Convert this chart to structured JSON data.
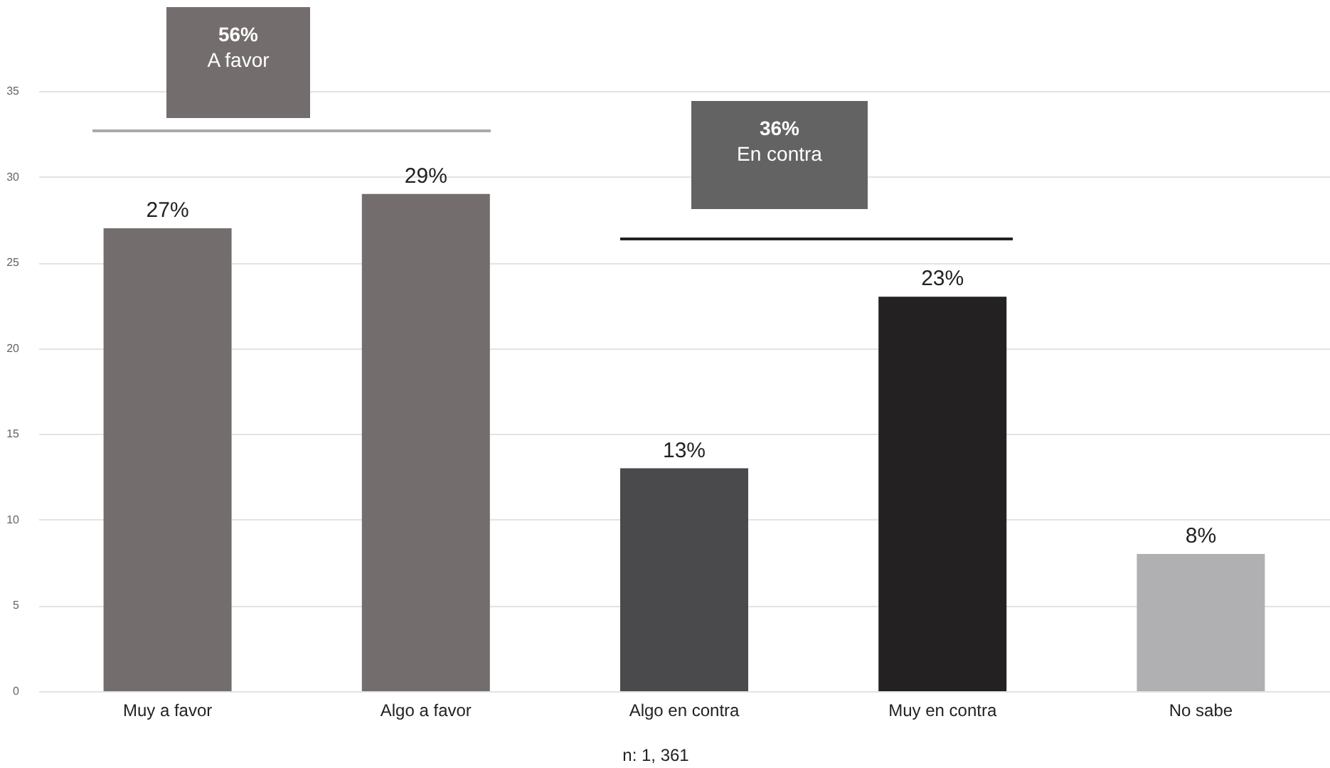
{
  "chart_data": {
    "type": "bar",
    "categories": [
      "Muy a favor",
      "Algo a favor",
      "Algo en contra",
      "Muy en contra",
      "No sabe"
    ],
    "values": [
      27,
      29,
      13,
      23,
      8
    ],
    "colors": [
      "#736e6d",
      "#736e6d",
      "#4a4a4c",
      "#242122",
      "#b0b0b3"
    ],
    "value_labels": [
      "27%",
      "29%",
      "13%",
      "23%",
      "8%"
    ],
    "ylim": [
      0,
      35
    ],
    "yticks": [
      0,
      5,
      10,
      15,
      20,
      25,
      30,
      35
    ],
    "grid": "y",
    "annotations": [
      "56%\nA favor",
      "36%\nEn contra",
      "n: 1, 361"
    ]
  }
}
